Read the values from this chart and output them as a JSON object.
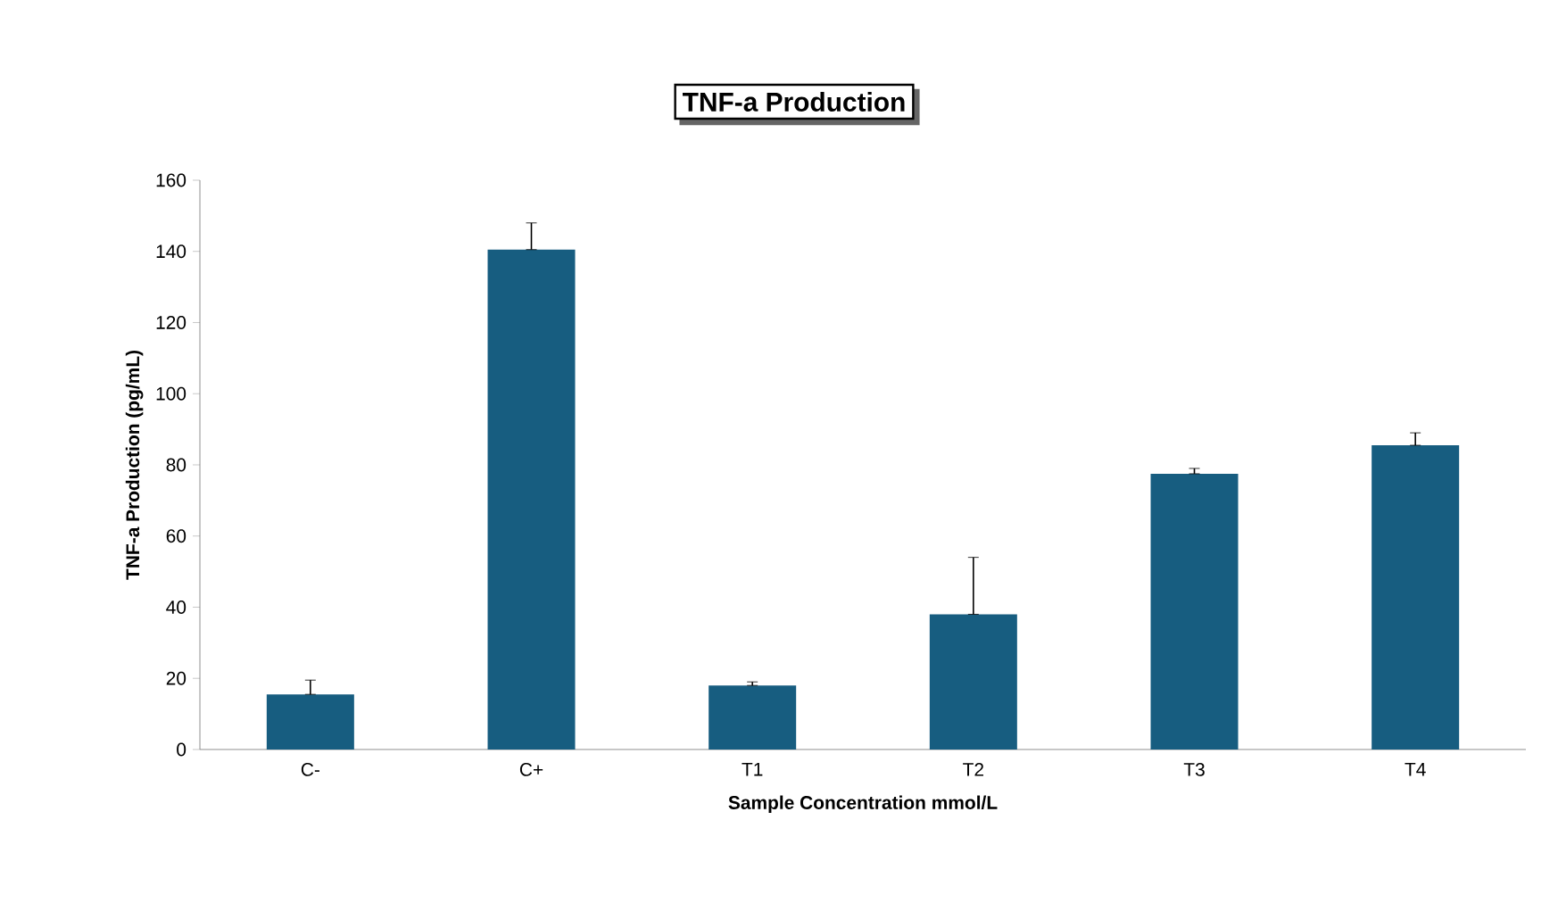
{
  "chart_data": {
    "type": "bar",
    "title": "TNF-a Production",
    "xlabel": "Sample Concentration mmol/L",
    "ylabel": "TNF-a Production (pg/mL)",
    "categories": [
      "C-",
      "C+",
      "T1",
      "T2",
      "T3",
      "T4"
    ],
    "values": [
      15.5,
      140.5,
      18,
      38,
      77.5,
      85.5
    ],
    "errors": [
      [
        15.5,
        19.5
      ],
      [
        140.5,
        148
      ],
      [
        18,
        19
      ],
      [
        38,
        54
      ],
      [
        77.5,
        79
      ],
      [
        85.5,
        89
      ]
    ],
    "color": "#175d80",
    "ylim": [
      0,
      160
    ],
    "yticks": [
      0,
      20,
      40,
      60,
      80,
      100,
      120,
      140,
      160
    ],
    "grid": false
  }
}
